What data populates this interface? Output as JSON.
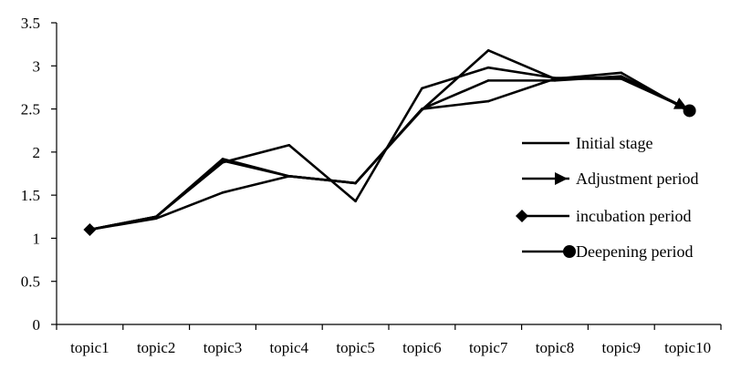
{
  "chart_data": {
    "type": "line",
    "title": "",
    "xlabel": "",
    "ylabel": "",
    "categories": [
      "topic1",
      "topic2",
      "topic3",
      "topic4",
      "topic5",
      "topic6",
      "topic7",
      "topic8",
      "topic9",
      "topic10"
    ],
    "ylim": [
      0,
      3.5
    ],
    "yticks": [
      "0",
      "0.5",
      "1",
      "1.5",
      "2",
      "2.5",
      "3",
      "3.5"
    ],
    "grid": false,
    "legend_position": "right",
    "series": [
      {
        "name": "Initial stage",
        "marker": "none",
        "values": [
          1.1,
          1.23,
          1.53,
          1.72,
          1.64,
          2.5,
          2.59,
          2.85,
          2.85,
          2.5
        ]
      },
      {
        "name": "Adjustment period",
        "marker": "arrow",
        "values": [
          1.1,
          1.25,
          1.9,
          1.72,
          1.64,
          2.5,
          2.83,
          2.83,
          2.88,
          2.5
        ]
      },
      {
        "name": "incubation period",
        "marker": "diamond",
        "values": [
          1.1,
          1.25,
          1.88,
          2.08,
          1.43,
          2.74,
          2.98,
          2.86,
          2.86,
          2.5
        ]
      },
      {
        "name": "Deepening period",
        "marker": "circle",
        "values": [
          1.1,
          1.25,
          1.92,
          1.72,
          1.64,
          2.49,
          3.18,
          2.85,
          2.92,
          2.48
        ]
      }
    ]
  }
}
